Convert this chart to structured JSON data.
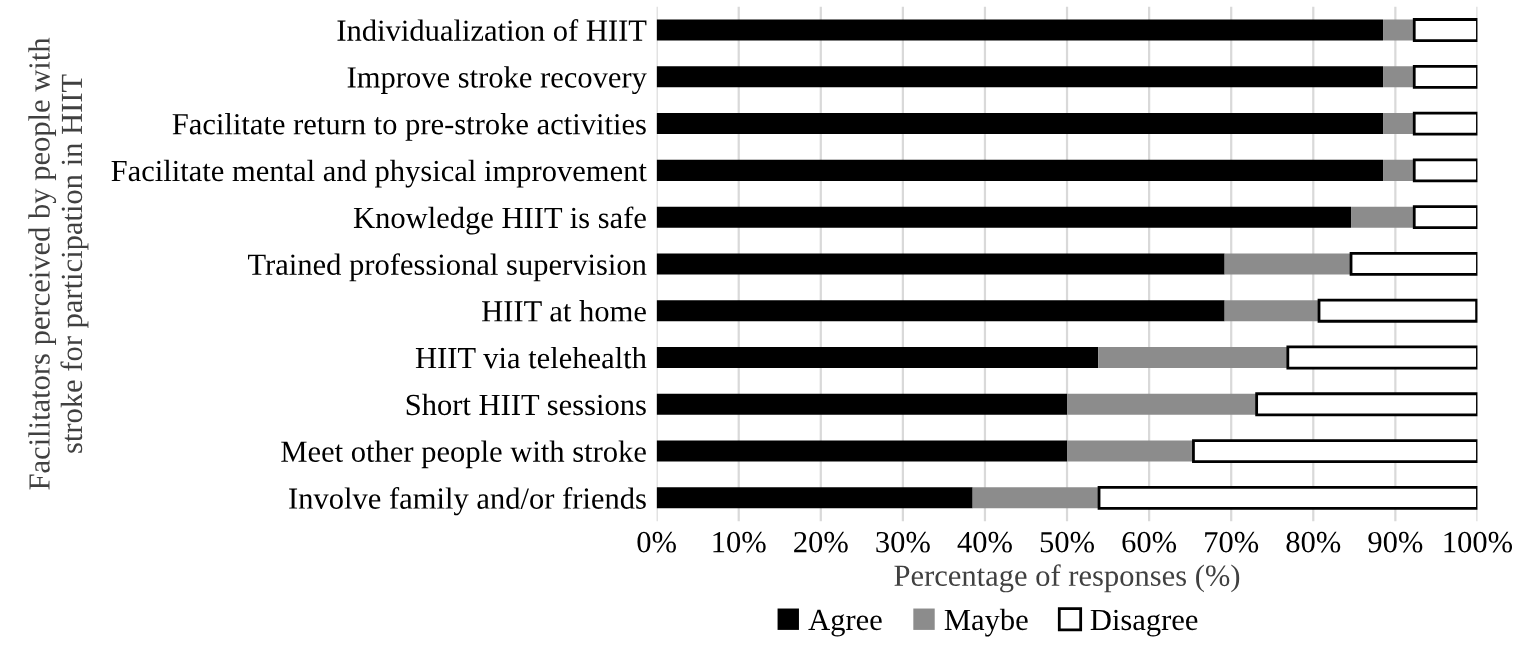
{
  "chart_data": {
    "type": "bar",
    "orientation": "horizontal",
    "stacked": true,
    "ylabel": "Facilitators perceived by people with\nstroke for participation in HIIT",
    "xlabel": "Percentage of responses (%)",
    "categories": [
      "Individualization of HIIT",
      "Improve stroke recovery",
      "Facilitate return to pre-stroke activities",
      "Facilitate mental and physical improvement",
      "Knowledge HIIT is safe",
      "Trained professional supervision",
      "HIIT at home",
      "HIIT via telehealth",
      "Short HIIT sessions",
      "Meet other people with stroke",
      "Involve family and/or friends"
    ],
    "series": [
      {
        "name": "Agree",
        "color": "#000000",
        "values": [
          88.5,
          88.5,
          88.5,
          88.5,
          84.6,
          69.2,
          69.2,
          53.8,
          50.0,
          50.0,
          38.5
        ]
      },
      {
        "name": "Maybe",
        "color": "#8c8c8c",
        "values": [
          3.8,
          3.8,
          3.8,
          3.8,
          7.7,
          15.4,
          11.5,
          23.1,
          23.1,
          15.4,
          15.4
        ]
      },
      {
        "name": "Disagree",
        "color": "#ffffff",
        "values": [
          7.7,
          7.7,
          7.7,
          7.7,
          7.7,
          15.4,
          19.2,
          23.1,
          26.9,
          34.6,
          46.1
        ]
      }
    ],
    "xlim": [
      0,
      100
    ],
    "xticks": [
      {
        "value": 0,
        "label": "0%"
      },
      {
        "value": 10,
        "label": "10%"
      },
      {
        "value": 20,
        "label": "20%"
      },
      {
        "value": 30,
        "label": "30%"
      },
      {
        "value": 40,
        "label": "40%"
      },
      {
        "value": 50,
        "label": "50%"
      },
      {
        "value": 60,
        "label": "60%"
      },
      {
        "value": 70,
        "label": "70%"
      },
      {
        "value": 80,
        "label": "80%"
      },
      {
        "value": 90,
        "label": "90%"
      },
      {
        "value": 100,
        "label": "100%"
      }
    ],
    "grid": "x",
    "legend": "bottom"
  }
}
